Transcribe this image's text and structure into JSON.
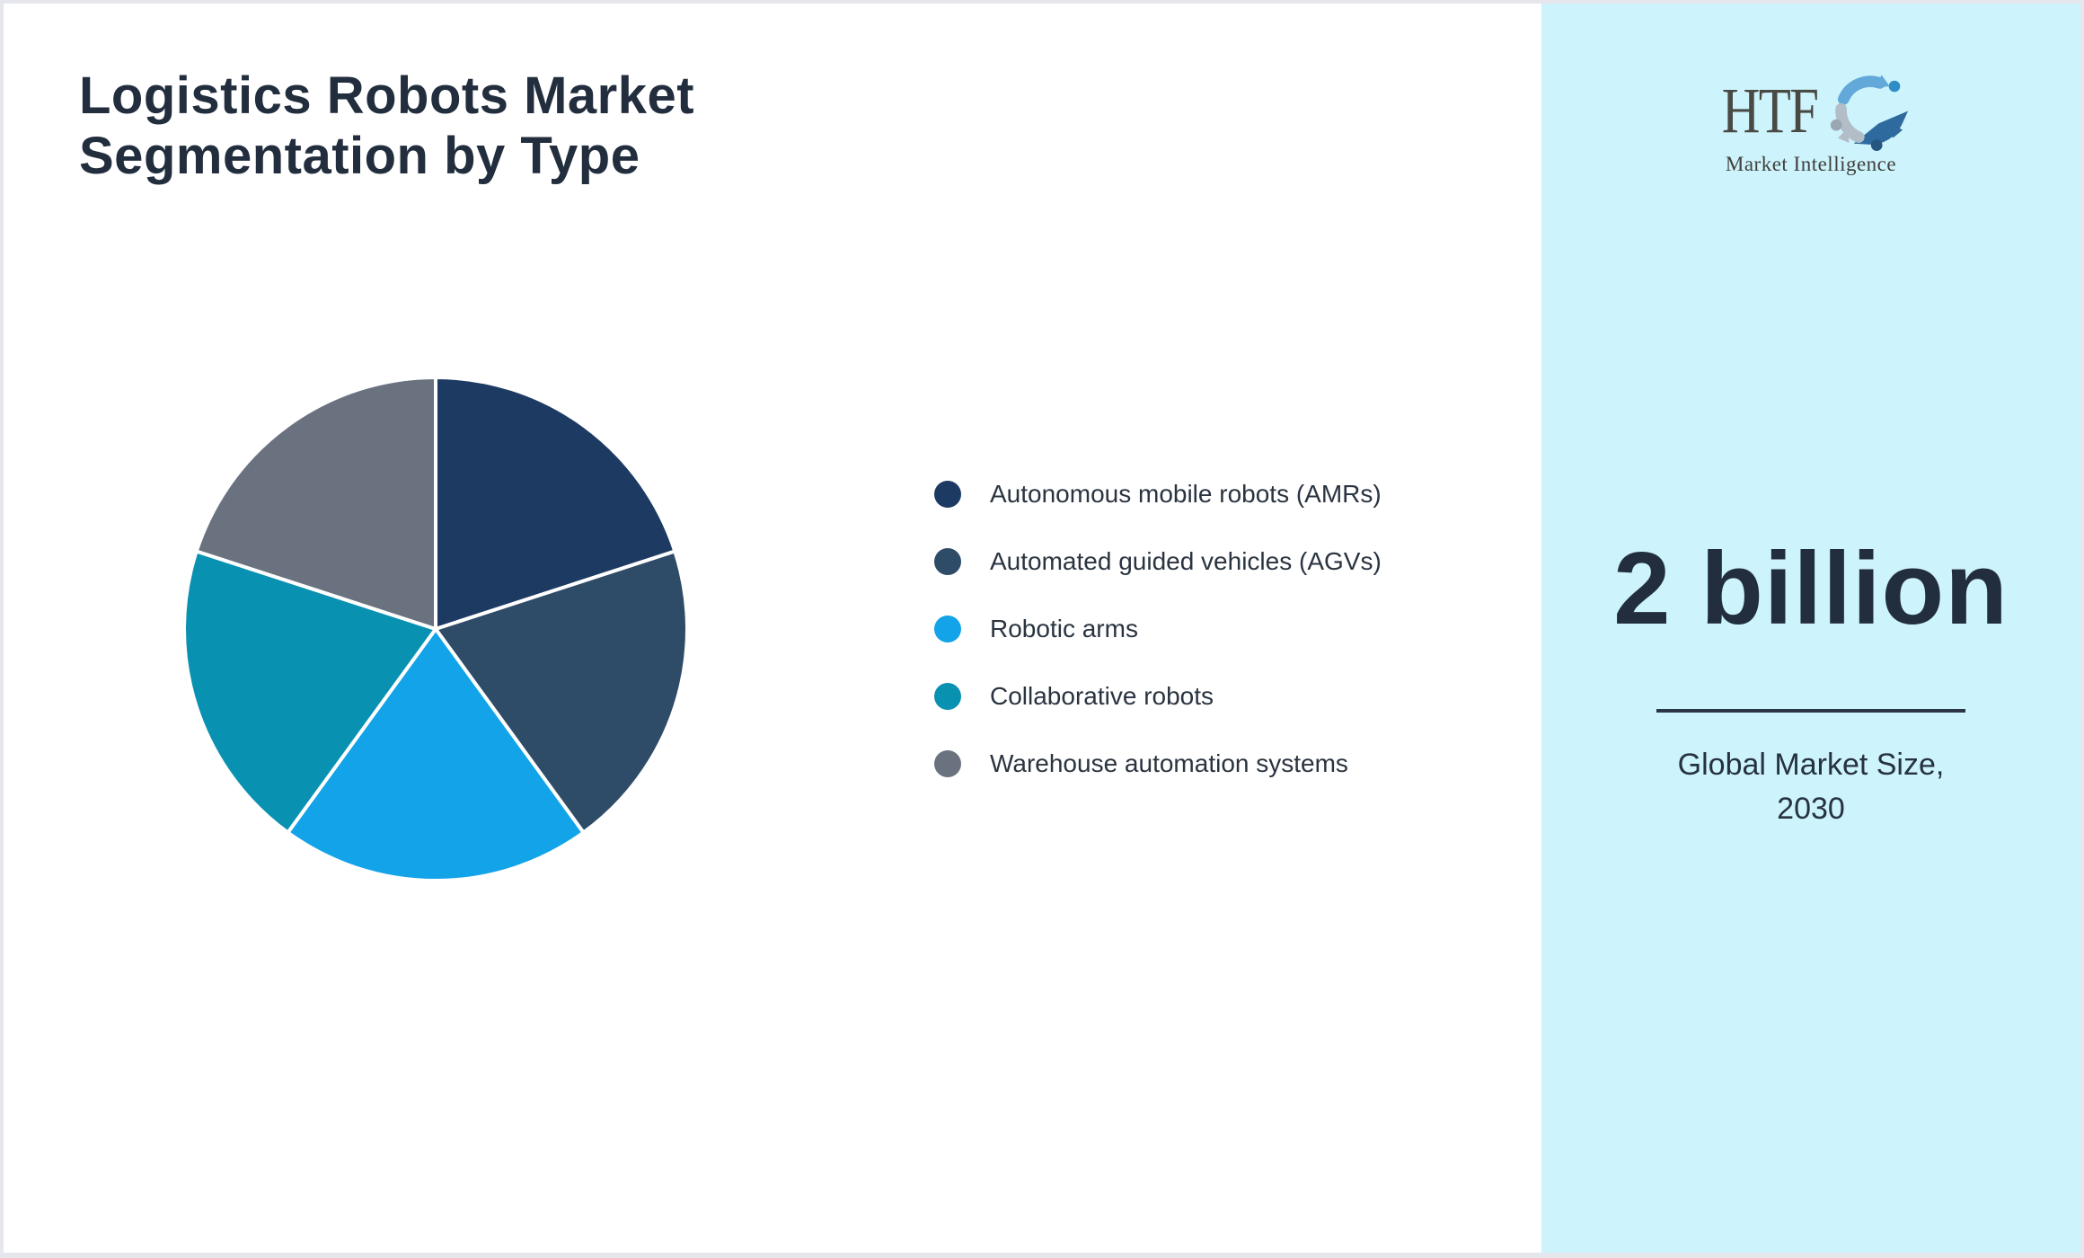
{
  "chart_data": {
    "type": "pie",
    "title": "Logistics Robots Market Segmentation by Type",
    "categories": [
      "Autonomous mobile robots (AMRs)",
      "Automated guided vehicles (AGVs)",
      "Robotic arms",
      "Collaborative robots",
      "Warehouse automation systems"
    ],
    "values": [
      20,
      20,
      20,
      20,
      20
    ],
    "unit": "percent",
    "colors": [
      "#1d3a63",
      "#2e4b68",
      "#12a3e8",
      "#0991b2",
      "#6a7280"
    ],
    "start_angle_deg": 90,
    "direction": "clockwise",
    "slice_separator_color": "#ffffff",
    "legend_position": "right",
    "grid": false
  },
  "sidebar": {
    "background_color": "#cdf3fc",
    "logo": {
      "text": "HTF",
      "subtext": "Market Intelligence",
      "swirl_colors": [
        "#62a8d8",
        "#b3bdc8",
        "#2e6a9d"
      ]
    },
    "market_size_value": "2 billion",
    "market_size_label_line1": "Global Market Size,",
    "market_size_label_line2": "2030"
  },
  "colors": {
    "text_dark": "#222e3e",
    "legend_text": "#2a3440",
    "divider": "#2b3545",
    "frame_border": "#e5e7ec",
    "main_background": "#ffffff"
  }
}
